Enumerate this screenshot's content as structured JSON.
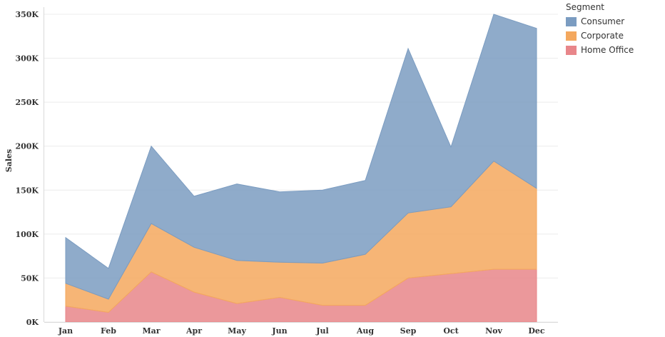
{
  "chart_data": {
    "type": "area",
    "stacked": true,
    "categories": [
      "Jan",
      "Feb",
      "Mar",
      "Apr",
      "May",
      "Jun",
      "Jul",
      "Aug",
      "Sep",
      "Oct",
      "Nov",
      "Dec"
    ],
    "series": [
      {
        "name": "Home Office",
        "color": "#e8868a",
        "values": [
          18000,
          11000,
          57000,
          34000,
          21000,
          28000,
          19000,
          19000,
          50000,
          55000,
          60000,
          60000
        ]
      },
      {
        "name": "Corporate",
        "color": "#f4a85e",
        "values": [
          26000,
          15000,
          55000,
          51000,
          49000,
          40000,
          48000,
          58000,
          74000,
          76000,
          123000,
          92000
        ]
      },
      {
        "name": "Consumer",
        "color": "#7b9cc1",
        "values": [
          52000,
          35000,
          88000,
          58000,
          87000,
          80000,
          83000,
          84000,
          187000,
          68000,
          167000,
          182000
        ]
      }
    ],
    "ylabel": "Sales",
    "xlabel": "",
    "ylim": [
      0,
      350000
    ],
    "yticks": [
      0,
      50000,
      100000,
      150000,
      200000,
      250000,
      300000,
      350000
    ],
    "ytick_labels": [
      "0K",
      "50K",
      "100K",
      "150K",
      "200K",
      "250K",
      "300K",
      "350K"
    ],
    "grid": true,
    "legend": {
      "title": "Segment",
      "position": "right",
      "items": [
        "Consumer",
        "Corporate",
        "Home Office"
      ]
    }
  }
}
